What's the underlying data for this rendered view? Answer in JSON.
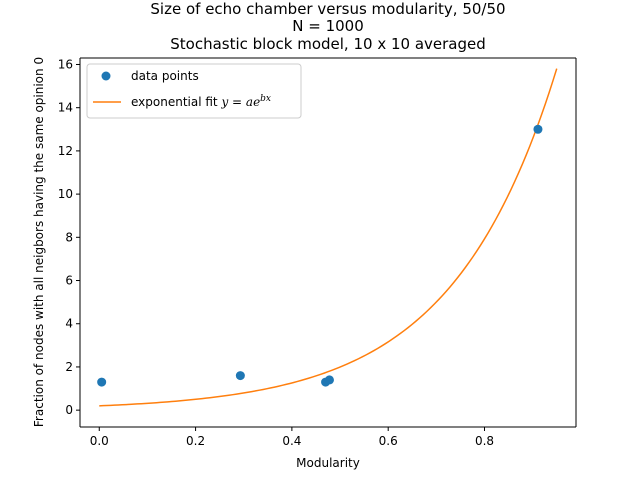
{
  "chart_data": {
    "type": "scatter",
    "title_lines": [
      "Size of echo chamber versus modularity, 50/50",
      "N = 1000",
      "Stochastic block model, 10 x 10 averaged"
    ],
    "xlabel": "Modularity",
    "ylabel": "Fraction of nodes with all neigbors having the same opinion 0",
    "xlim": [
      -0.04,
      0.99
    ],
    "ylim": [
      -0.78,
      16.3
    ],
    "xticks": [
      0.0,
      0.2,
      0.4,
      0.6,
      0.8
    ],
    "xtick_labels": [
      "0.0",
      "0.2",
      "0.4",
      "0.6",
      "0.8"
    ],
    "yticks": [
      0,
      2,
      4,
      6,
      8,
      10,
      12,
      14,
      16
    ],
    "ytick_labels": [
      "0",
      "2",
      "4",
      "6",
      "8",
      "10",
      "12",
      "14",
      "16"
    ],
    "grid": false,
    "legend_position": "top-left",
    "series": [
      {
        "name": "data points",
        "kind": "scatter",
        "color": "#1f77b4",
        "x": [
          0.005,
          0.293,
          0.47,
          0.478,
          0.911
        ],
        "y": [
          1.3,
          1.6,
          1.3,
          1.4,
          13.0
        ]
      },
      {
        "name": "exponential fit ",
        "name_math": "y = ae",
        "name_math_sup": "bx",
        "kind": "line",
        "color": "#ff7f0e",
        "fit": {
          "a": 0.2,
          "b": 4.6
        },
        "x_range": [
          0.0,
          0.95
        ]
      }
    ]
  }
}
